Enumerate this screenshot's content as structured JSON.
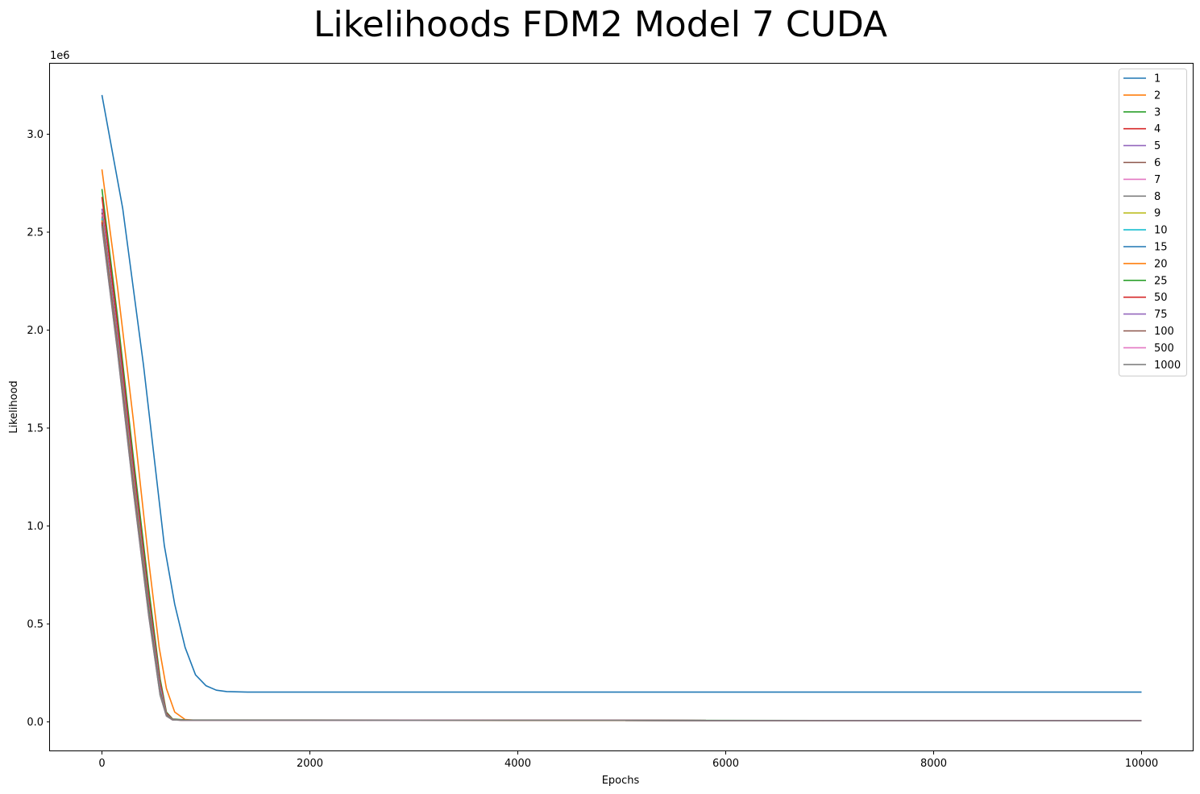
{
  "chart_data": {
    "type": "line",
    "title": "Likelihoods FDM2 Model 7 CUDA",
    "xlabel": "Epochs",
    "ylabel": "Likelihood",
    "y_scale_label": "1e6",
    "y_multiplier": 1000000,
    "xlim": [
      -500,
      10500
    ],
    "ylim": [
      -0.15,
      3.36
    ],
    "xticks": [
      0,
      2000,
      4000,
      6000,
      8000,
      10000
    ],
    "yticks": [
      0.0,
      0.5,
      1.0,
      1.5,
      2.0,
      2.5,
      3.0
    ],
    "ytick_labels": [
      "0.0",
      "0.5",
      "1.0",
      "1.5",
      "2.0",
      "2.5",
      "3.0"
    ],
    "grid": false,
    "legend_position": "top-right",
    "series": [
      {
        "name": "1",
        "color": "#1f77b4",
        "points": [
          [
            0,
            3.2
          ],
          [
            200,
            2.62
          ],
          [
            400,
            1.82
          ],
          [
            600,
            0.9
          ],
          [
            700,
            0.6
          ],
          [
            800,
            0.38
          ],
          [
            900,
            0.24
          ],
          [
            1000,
            0.185
          ],
          [
            1100,
            0.162
          ],
          [
            1200,
            0.155
          ],
          [
            1400,
            0.152
          ],
          [
            10000,
            0.152
          ]
        ]
      },
      {
        "name": "2",
        "color": "#ff7f0e",
        "points": [
          [
            0,
            2.82
          ],
          [
            150,
            2.22
          ],
          [
            300,
            1.55
          ],
          [
            450,
            0.82
          ],
          [
            550,
            0.38
          ],
          [
            620,
            0.17
          ],
          [
            700,
            0.05
          ],
          [
            800,
            0.012
          ],
          [
            900,
            0.008
          ],
          [
            10000,
            0.006
          ]
        ]
      },
      {
        "name": "3",
        "color": "#2ca02c",
        "points": [
          [
            0,
            2.72
          ],
          [
            150,
            2.07
          ],
          [
            300,
            1.36
          ],
          [
            450,
            0.68
          ],
          [
            560,
            0.22
          ],
          [
            620,
            0.05
          ],
          [
            680,
            0.015
          ],
          [
            800,
            0.01
          ],
          [
            10000,
            0.006
          ]
        ]
      },
      {
        "name": "4",
        "color": "#d62728",
        "points": [
          [
            0,
            2.68
          ],
          [
            150,
            2.03
          ],
          [
            300,
            1.32
          ],
          [
            450,
            0.64
          ],
          [
            560,
            0.2
          ],
          [
            620,
            0.045
          ],
          [
            680,
            0.013
          ],
          [
            800,
            0.009
          ],
          [
            10000,
            0.006
          ]
        ]
      },
      {
        "name": "5",
        "color": "#9467bd",
        "points": [
          [
            0,
            2.62
          ],
          [
            150,
            1.98
          ],
          [
            300,
            1.28
          ],
          [
            450,
            0.61
          ],
          [
            560,
            0.18
          ],
          [
            620,
            0.04
          ],
          [
            680,
            0.012
          ],
          [
            800,
            0.009
          ],
          [
            10000,
            0.006
          ]
        ]
      },
      {
        "name": "6",
        "color": "#8c564b",
        "points": [
          [
            0,
            2.6
          ],
          [
            150,
            1.96
          ],
          [
            300,
            1.26
          ],
          [
            450,
            0.6
          ],
          [
            560,
            0.17
          ],
          [
            620,
            0.038
          ],
          [
            680,
            0.012
          ],
          [
            800,
            0.009
          ],
          [
            10000,
            0.006
          ]
        ]
      },
      {
        "name": "7",
        "color": "#e377c2",
        "points": [
          [
            0,
            2.59
          ],
          [
            150,
            1.95
          ],
          [
            300,
            1.25
          ],
          [
            450,
            0.59
          ],
          [
            560,
            0.17
          ],
          [
            620,
            0.037
          ],
          [
            680,
            0.012
          ],
          [
            800,
            0.009
          ],
          [
            10000,
            0.006
          ]
        ]
      },
      {
        "name": "8",
        "color": "#7f7f7f",
        "points": [
          [
            0,
            2.58
          ],
          [
            150,
            1.94
          ],
          [
            300,
            1.24
          ],
          [
            450,
            0.58
          ],
          [
            560,
            0.16
          ],
          [
            620,
            0.036
          ],
          [
            680,
            0.011
          ],
          [
            800,
            0.009
          ],
          [
            10000,
            0.006
          ]
        ]
      },
      {
        "name": "9",
        "color": "#bcbd22",
        "points": [
          [
            0,
            2.57
          ],
          [
            150,
            1.93
          ],
          [
            300,
            1.24
          ],
          [
            450,
            0.58
          ],
          [
            560,
            0.16
          ],
          [
            620,
            0.035
          ],
          [
            680,
            0.011
          ],
          [
            800,
            0.009
          ],
          [
            10000,
            0.006
          ]
        ]
      },
      {
        "name": "10",
        "color": "#17becf",
        "points": [
          [
            0,
            2.57
          ],
          [
            150,
            1.93
          ],
          [
            300,
            1.23
          ],
          [
            450,
            0.57
          ],
          [
            560,
            0.16
          ],
          [
            620,
            0.035
          ],
          [
            680,
            0.011
          ],
          [
            800,
            0.009
          ],
          [
            10000,
            0.006
          ]
        ]
      },
      {
        "name": "15",
        "color": "#1f77b4",
        "points": [
          [
            0,
            2.56
          ],
          [
            150,
            1.92
          ],
          [
            300,
            1.22
          ],
          [
            450,
            0.57
          ],
          [
            560,
            0.155
          ],
          [
            620,
            0.034
          ],
          [
            680,
            0.011
          ],
          [
            800,
            0.009
          ],
          [
            10000,
            0.006
          ]
        ]
      },
      {
        "name": "20",
        "color": "#ff7f0e",
        "points": [
          [
            0,
            2.56
          ],
          [
            150,
            1.92
          ],
          [
            300,
            1.22
          ],
          [
            450,
            0.56
          ],
          [
            560,
            0.15
          ],
          [
            620,
            0.033
          ],
          [
            680,
            0.011
          ],
          [
            800,
            0.009
          ],
          [
            10000,
            0.006
          ]
        ]
      },
      {
        "name": "25",
        "color": "#2ca02c",
        "points": [
          [
            0,
            2.55
          ],
          [
            150,
            1.91
          ],
          [
            300,
            1.21
          ],
          [
            450,
            0.56
          ],
          [
            560,
            0.15
          ],
          [
            620,
            0.033
          ],
          [
            680,
            0.011
          ],
          [
            800,
            0.009
          ],
          [
            10000,
            0.006
          ]
        ]
      },
      {
        "name": "50",
        "color": "#d62728",
        "points": [
          [
            0,
            2.55
          ],
          [
            150,
            1.91
          ],
          [
            300,
            1.21
          ],
          [
            450,
            0.55
          ],
          [
            560,
            0.145
          ],
          [
            620,
            0.032
          ],
          [
            680,
            0.01
          ],
          [
            800,
            0.009
          ],
          [
            10000,
            0.006
          ]
        ]
      },
      {
        "name": "75",
        "color": "#9467bd",
        "points": [
          [
            0,
            2.54
          ],
          [
            150,
            1.9
          ],
          [
            300,
            1.2
          ],
          [
            450,
            0.55
          ],
          [
            560,
            0.14
          ],
          [
            620,
            0.031
          ],
          [
            680,
            0.01
          ],
          [
            800,
            0.009
          ],
          [
            10000,
            0.006
          ]
        ]
      },
      {
        "name": "100",
        "color": "#8c564b",
        "points": [
          [
            0,
            2.54
          ],
          [
            150,
            1.9
          ],
          [
            300,
            1.2
          ],
          [
            450,
            0.55
          ],
          [
            560,
            0.14
          ],
          [
            620,
            0.031
          ],
          [
            680,
            0.01
          ],
          [
            800,
            0.009
          ],
          [
            10000,
            0.006
          ]
        ]
      },
      {
        "name": "500",
        "color": "#e377c2",
        "points": [
          [
            0,
            2.53
          ],
          [
            150,
            1.89
          ],
          [
            300,
            1.19
          ],
          [
            450,
            0.54
          ],
          [
            560,
            0.14
          ],
          [
            620,
            0.03
          ],
          [
            680,
            0.01
          ],
          [
            800,
            0.009
          ],
          [
            10000,
            0.006
          ]
        ]
      },
      {
        "name": "1000",
        "color": "#7f7f7f",
        "points": [
          [
            0,
            2.53
          ],
          [
            150,
            1.89
          ],
          [
            300,
            1.19
          ],
          [
            450,
            0.54
          ],
          [
            560,
            0.135
          ],
          [
            620,
            0.03
          ],
          [
            680,
            0.01
          ],
          [
            800,
            0.009
          ],
          [
            10000,
            0.006
          ]
        ]
      }
    ]
  }
}
